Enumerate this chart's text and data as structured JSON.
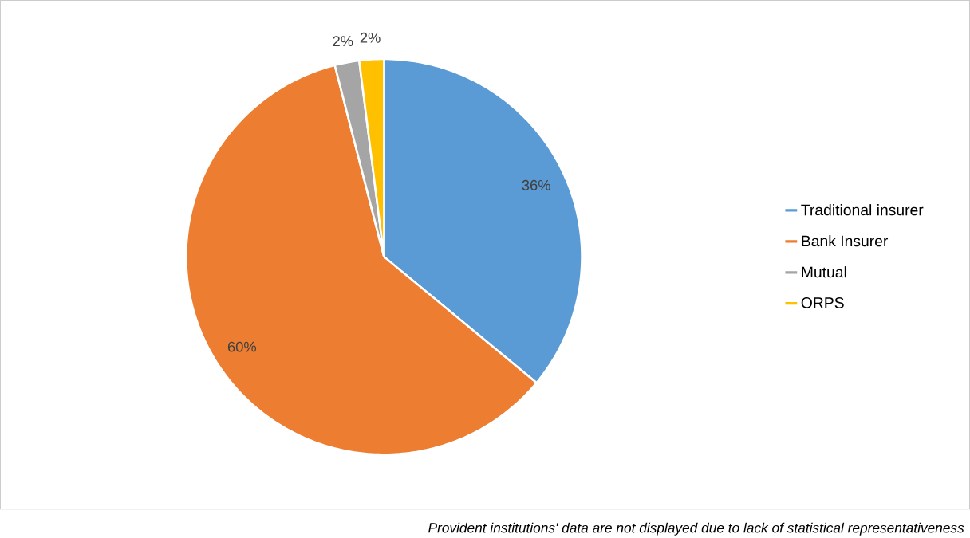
{
  "chart_data": {
    "type": "pie",
    "categories": [
      "Traditional insurer",
      "Bank Insurer",
      "Mutual",
      "ORPS"
    ],
    "values": [
      36,
      60,
      2,
      2
    ],
    "colors": [
      "#5b9bd5",
      "#ed7d31",
      "#a5a5a5",
      "#ffc000"
    ],
    "value_labels": [
      "36%",
      "60%",
      "2%",
      "2%"
    ],
    "legend": "right",
    "annotations": [
      "Provident institutions' data are not displayed due to lack of statistical representativeness"
    ]
  }
}
